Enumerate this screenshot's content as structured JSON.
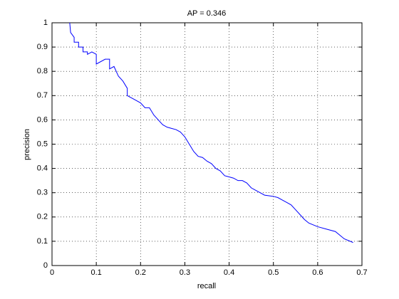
{
  "chart_data": {
    "type": "line",
    "title": "AP = 0.346",
    "x_label": "recall",
    "y_label": "precision",
    "x": [
      0.04,
      0.042,
      0.05,
      0.05,
      0.06,
      0.06,
      0.07,
      0.07,
      0.08,
      0.08,
      0.09,
      0.1,
      0.1,
      0.12,
      0.13,
      0.13,
      0.14,
      0.15,
      0.16,
      0.17,
      0.17,
      0.18,
      0.19,
      0.2,
      0.21,
      0.22,
      0.23,
      0.24,
      0.25,
      0.26,
      0.27,
      0.28,
      0.29,
      0.3,
      0.31,
      0.32,
      0.33,
      0.34,
      0.35,
      0.36,
      0.37,
      0.38,
      0.39,
      0.4,
      0.41,
      0.42,
      0.43,
      0.44,
      0.45,
      0.46,
      0.47,
      0.48,
      0.5,
      0.51,
      0.52,
      0.53,
      0.54,
      0.55,
      0.56,
      0.57,
      0.58,
      0.6,
      0.62,
      0.64,
      0.66,
      0.68
    ],
    "values": [
      1.0,
      0.96,
      0.94,
      0.92,
      0.92,
      0.9,
      0.9,
      0.88,
      0.88,
      0.87,
      0.88,
      0.87,
      0.83,
      0.85,
      0.85,
      0.81,
      0.82,
      0.78,
      0.76,
      0.73,
      0.7,
      0.69,
      0.68,
      0.67,
      0.65,
      0.65,
      0.62,
      0.6,
      0.58,
      0.57,
      0.565,
      0.56,
      0.55,
      0.53,
      0.5,
      0.47,
      0.45,
      0.445,
      0.43,
      0.42,
      0.4,
      0.39,
      0.37,
      0.365,
      0.36,
      0.35,
      0.35,
      0.34,
      0.32,
      0.31,
      0.3,
      0.29,
      0.285,
      0.28,
      0.27,
      0.26,
      0.25,
      0.23,
      0.21,
      0.19,
      0.175,
      0.16,
      0.15,
      0.14,
      0.11,
      0.095
    ],
    "color": "#0000ff",
    "xlim": [
      0,
      0.7
    ],
    "xticks": [
      0,
      0.1,
      0.2,
      0.3,
      0.4,
      0.5,
      0.6,
      0.7
    ],
    "ylim": [
      0,
      1
    ],
    "yticks": [
      0,
      0.1,
      0.2,
      0.3,
      0.4,
      0.5,
      0.6,
      0.7,
      0.8,
      0.9,
      1
    ],
    "grid": true
  }
}
